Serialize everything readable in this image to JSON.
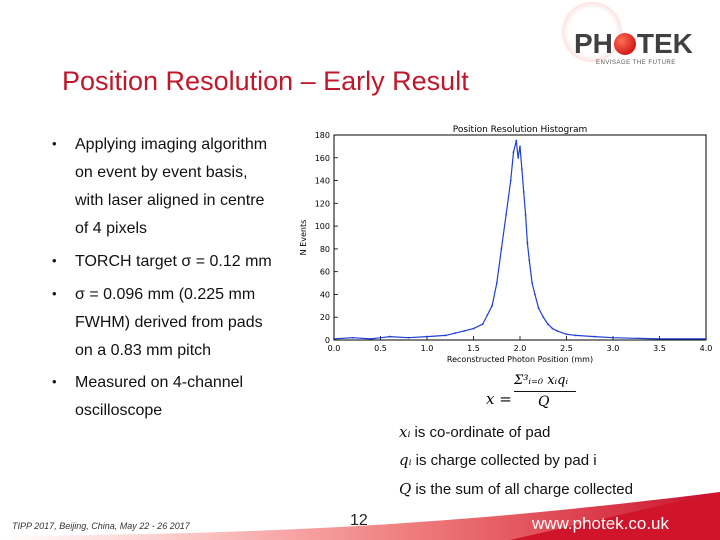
{
  "slide": {
    "title": "Position Resolution – Early Result",
    "page_number": "12",
    "footer": "TIPP 2017, Beijing, China, May 22 - 26 2017",
    "website": "www.photek.co.uk",
    "accent_color": "#c0172b"
  },
  "logo": {
    "part1": "PH",
    "part2": "TEK",
    "tagline": "ENVISAGE THE FUTURE"
  },
  "bullets": [
    {
      "lines": [
        "Applying imaging algorithm",
        "on event by event basis,",
        "with laser aligned in centre",
        "of 4 pixels"
      ]
    },
    {
      "lines": [
        "TORCH target σ = 0.12 mm"
      ]
    },
    {
      "lines": [
        "σ = 0.096 mm (0.225 mm",
        "FWHM) derived from pads",
        "on a 0.83 mm pitch"
      ]
    },
    {
      "lines": [
        "Measured on 4-channel",
        "oscilloscope"
      ]
    }
  ],
  "formula": {
    "lhs": "x =",
    "numerator": "Σ³ᵢ₌₀ xᵢqᵢ",
    "denominator": "Q",
    "definitions": [
      {
        "symbol": "xᵢ",
        "text": "is co-ordinate of pad"
      },
      {
        "symbol": "qᵢ",
        "text": "is charge collected by pad i"
      },
      {
        "symbol": "Q",
        "text": "is the sum of all charge collected"
      }
    ]
  },
  "chart_data": {
    "type": "line",
    "title": "Position Resolution Histogram",
    "xlabel": "Reconstructed Photon Position (mm)",
    "ylabel": "N Events",
    "xlim": [
      0.0,
      4.0
    ],
    "ylim": [
      0,
      180
    ],
    "xticks": [
      "0.0",
      "0.5",
      "1.0",
      "1.5",
      "2.0",
      "2.5",
      "3.0",
      "3.5",
      "4.0"
    ],
    "yticks": [
      "0",
      "20",
      "40",
      "60",
      "80",
      "100",
      "120",
      "140",
      "160",
      "180"
    ],
    "grid": false,
    "color": "#1f3fd6",
    "x": [
      0.0,
      0.2,
      0.4,
      0.6,
      0.8,
      1.0,
      1.2,
      1.3,
      1.4,
      1.5,
      1.6,
      1.65,
      1.7,
      1.75,
      1.8,
      1.85,
      1.9,
      1.93,
      1.96,
      1.98,
      2.0,
      2.02,
      2.04,
      2.06,
      2.08,
      2.1,
      2.13,
      2.16,
      2.2,
      2.25,
      2.3,
      2.35,
      2.4,
      2.5,
      2.6,
      2.8,
      3.0,
      3.5,
      4.0
    ],
    "y": [
      1,
      2,
      1,
      3,
      2,
      3,
      4,
      6,
      8,
      10,
      14,
      22,
      30,
      50,
      80,
      110,
      140,
      165,
      175,
      160,
      170,
      150,
      130,
      110,
      85,
      70,
      50,
      40,
      28,
      20,
      14,
      10,
      8,
      5,
      4,
      3,
      2,
      1,
      1
    ]
  }
}
